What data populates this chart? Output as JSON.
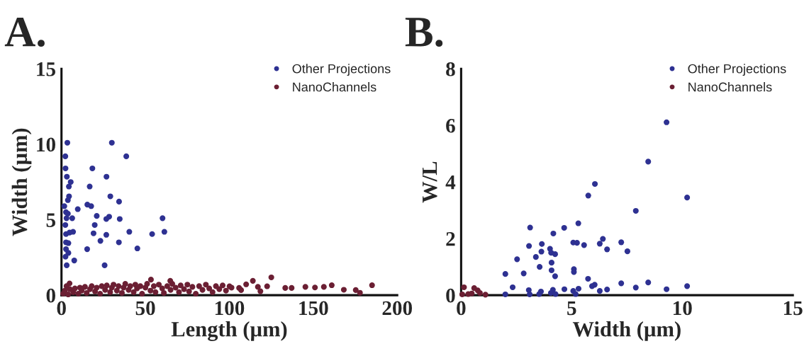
{
  "chart_data": [
    {
      "type": "scatter",
      "title": "A.",
      "xlabel": "Length (µm)",
      "ylabel": "Width (µm)",
      "xlim": [
        0,
        200
      ],
      "xticks": [
        0,
        50,
        100,
        150,
        200
      ],
      "ylim": [
        0,
        15
      ],
      "yticks": [
        0,
        5,
        10,
        15
      ],
      "legend": "top right",
      "marker": "circle",
      "grid": false,
      "series": [
        {
          "name": "Other Projections",
          "color": "#2e3192",
          "x": [
            3.5,
            30,
            2.3,
            38.6,
            2.4,
            18.4,
            3.2,
            26.8,
            5.5,
            4.4,
            16.8,
            4.5,
            29.1,
            3.8,
            34.3,
            15.4,
            17.7,
            1.7,
            9.7,
            2.7,
            3.8,
            21,
            28.4,
            26.7,
            34.7,
            60.2,
            3,
            6.4,
            19.8,
            2.3,
            40.4,
            61.3,
            54,
            19.1,
            26.7,
            6.9,
            2.7,
            4.8,
            23.2,
            34.2,
            2.7,
            4.1,
            45.2,
            15.3,
            2.7,
            4.1,
            2.4,
            7.6,
            3.1,
            25.7
          ],
          "values": [
            10.1,
            10.1,
            9.2,
            9.2,
            8.4,
            8.4,
            7.85,
            7.85,
            7.5,
            7.2,
            7.2,
            6.55,
            6.55,
            6.3,
            6.2,
            6.0,
            5.9,
            5.9,
            5.7,
            5.5,
            5.4,
            5.25,
            5.2,
            5.05,
            5.05,
            5.1,
            5.1,
            5.1,
            4.65,
            4.65,
            4.2,
            4.2,
            4.05,
            4.1,
            4.0,
            4.2,
            4.05,
            4.15,
            3.6,
            3.5,
            3.5,
            3.45,
            3.1,
            3.05,
            3.05,
            2.8,
            2.55,
            2.3,
            1.98,
            1.98
          ]
        },
        {
          "name": "NanoChannels",
          "color": "#6b1f33",
          "x": [
            1,
            2,
            3,
            4,
            5,
            7,
            8,
            10,
            11,
            12,
            14,
            15,
            17,
            18,
            20,
            21,
            23,
            24,
            26,
            27,
            29,
            30,
            31,
            33,
            34,
            36,
            37,
            38,
            40,
            41,
            43,
            44,
            45,
            47,
            48,
            50,
            51,
            53,
            55,
            56,
            58,
            60,
            61,
            63,
            65,
            66,
            68,
            70,
            71,
            73,
            75,
            76,
            78,
            80,
            82,
            84,
            86,
            88,
            90,
            92,
            94,
            96,
            98,
            4.8,
            53.3,
            64.8,
            100.1,
            101.3,
            105.8,
            107,
            110,
            114,
            117,
            118.5,
            122.5,
            125,
            133.3,
            137.1,
            145.3,
            151,
            156.3,
            161,
            168.2,
            175.3,
            177.8,
            185
          ],
          "values": [
            0.1,
            0.3,
            0.6,
            0.05,
            0.4,
            0.2,
            0.45,
            0.1,
            0.5,
            0.3,
            0.55,
            0.15,
            0.4,
            0.6,
            0.25,
            0.5,
            0.1,
            0.6,
            0.35,
            0.65,
            0.2,
            0.5,
            0.7,
            0.3,
            0.6,
            0.15,
            0.5,
            0.75,
            0.35,
            0.6,
            0.2,
            0.7,
            0.45,
            0.6,
            0.1,
            0.5,
            0.75,
            0.3,
            0.6,
            0.2,
            0.7,
            0.45,
            0.15,
            0.6,
            0.35,
            0.75,
            0.5,
            0.2,
            0.65,
            0.4,
            0.7,
            0.25,
            0.55,
            0.1,
            0.6,
            0.35,
            0.7,
            0.45,
            0.2,
            0.6,
            0.4,
            0.65,
            0.3,
            0.78,
            1.03,
            0.95,
            0.59,
            0.5,
            0.48,
            0.34,
            0.72,
            0.95,
            0.55,
            0.26,
            0.59,
            1.18,
            0.48,
            0.48,
            0.55,
            0.51,
            0.55,
            0.66,
            0.36,
            0.34,
            0.16,
            0.66
          ]
        }
      ]
    },
    {
      "type": "scatter",
      "title": "B.",
      "xlabel": "Width (µm)",
      "ylabel": "W/L",
      "xlim": [
        0,
        15
      ],
      "xticks": [
        0,
        5,
        10,
        15
      ],
      "ylim": [
        0,
        8
      ],
      "yticks": [
        0,
        2,
        4,
        6,
        8
      ],
      "legend": "top right",
      "marker": "circle",
      "grid": false,
      "series": [
        {
          "name": "Other Projections",
          "color": "#2e3192",
          "x": [
            9.29,
            8.46,
            6.05,
            5.75,
            10.22,
            7.9,
            5.3,
            3.12,
            4.66,
            4.17,
            6.41,
            5.07,
            5.24,
            7.24,
            6.27,
            3.65,
            5.56,
            3.07,
            4.02,
            6.6,
            3.63,
            7.52,
            4.07,
            4.25,
            3.38,
            2.53,
            4.09,
            3.55,
            4.09,
            5.1,
            5.1,
            4.25,
            2.0,
            2.83,
            5.74,
            6.04,
            5.92,
            7.24,
            8.46,
            7.9,
            10.22,
            9.29,
            2.33,
            3.06,
            4.67,
            5.31,
            6.27,
            6.6,
            2.0,
            3.1,
            3.61,
            3.53,
            4.15,
            4.06,
            4.27,
            5.07,
            5.18
          ],
          "values": [
            6.11,
            4.72,
            3.93,
            3.52,
            3.45,
            2.98,
            2.54,
            2.39,
            2.38,
            2.18,
            1.99,
            1.86,
            1.85,
            1.87,
            1.82,
            1.81,
            1.77,
            1.74,
            1.64,
            1.62,
            1.54,
            1.55,
            1.5,
            1.45,
            1.35,
            1.27,
            1.15,
            1.0,
            0.88,
            0.92,
            0.82,
            0.67,
            0.75,
            0.77,
            0.58,
            0.37,
            0.32,
            0.42,
            0.45,
            0.27,
            0.32,
            0.21,
            0.28,
            0.18,
            0.21,
            0.23,
            0.15,
            0.2,
            0.03,
            0.03,
            0.13,
            0.04,
            0.19,
            0.08,
            0.04,
            0.15,
            0.04
          ]
        },
        {
          "name": "NanoChannels",
          "color": "#6b1f33",
          "x": [
            0.13,
            0.59,
            0.75,
            0.85,
            1.1,
            0.32,
            0.05,
            0.48
          ],
          "values": [
            0.28,
            0.25,
            0.17,
            0.08,
            0.02,
            0.04,
            0.03,
            0.06
          ]
        }
      ]
    }
  ]
}
